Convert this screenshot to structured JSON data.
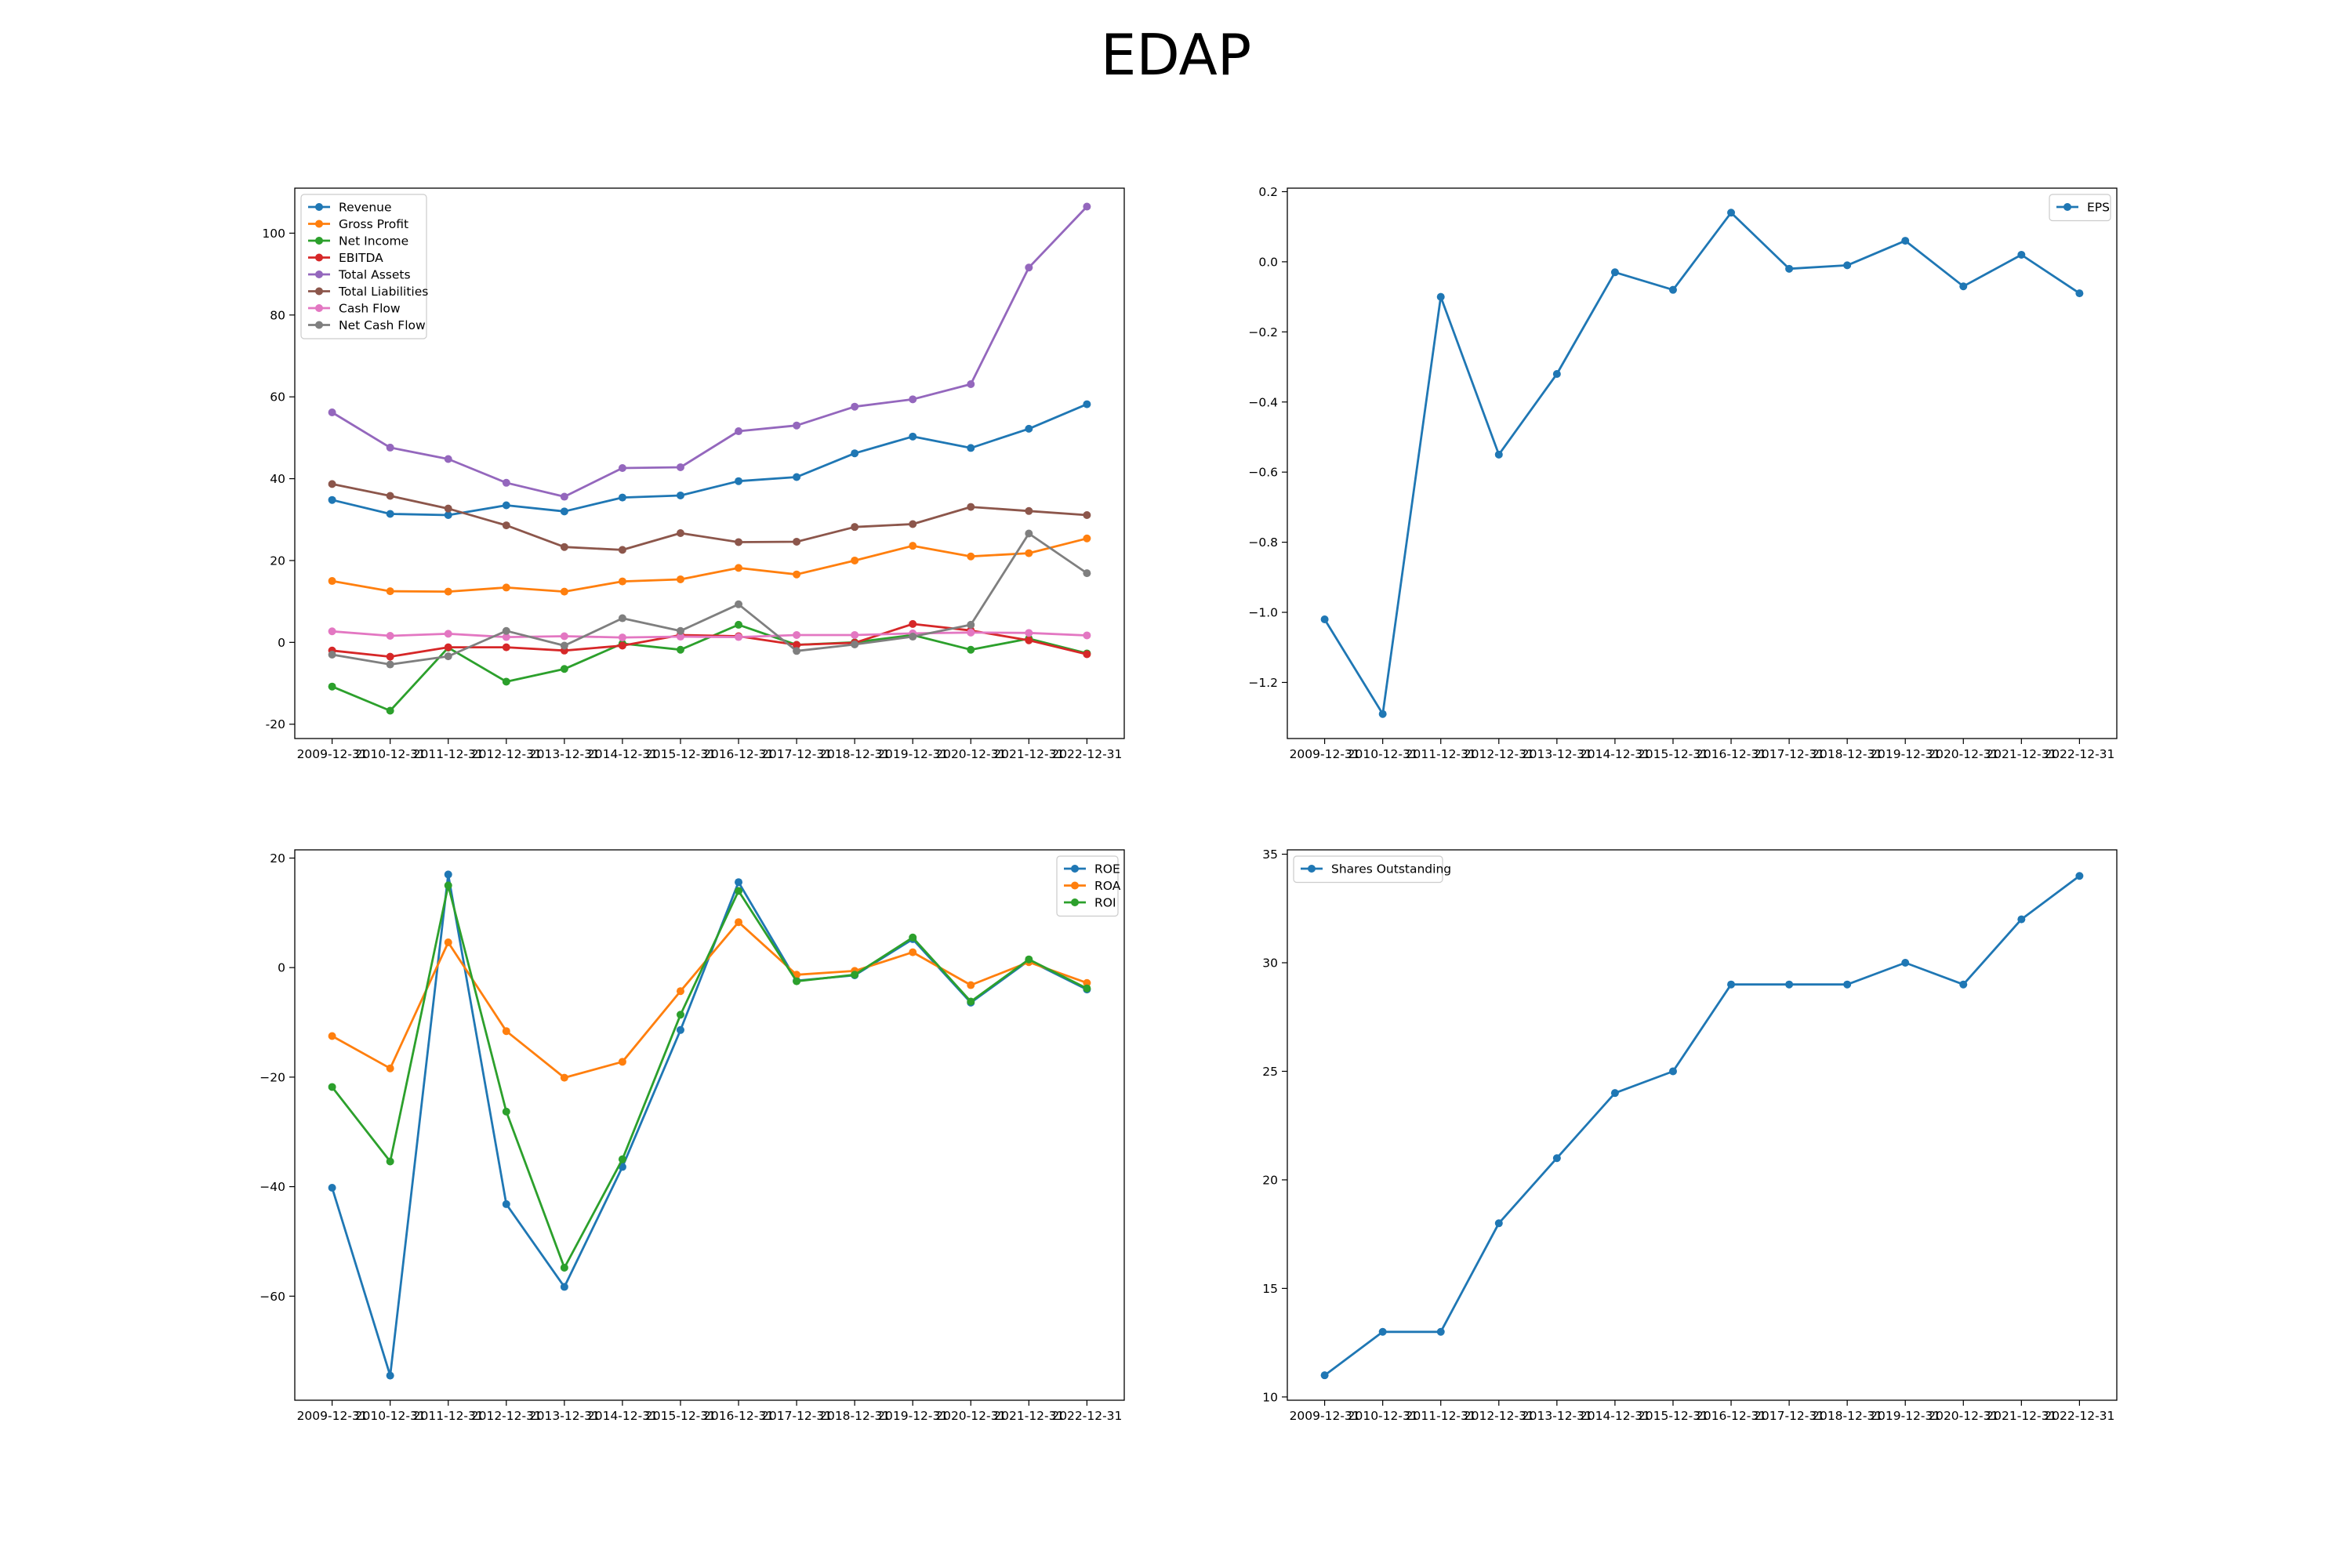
{
  "title": "EDAP",
  "chart_data": [
    {
      "type": "line",
      "title": "",
      "xlabel": "",
      "ylabel": "",
      "categories": [
        "2009-12-31",
        "2010-12-31",
        "2011-12-31",
        "2012-12-31",
        "2013-12-31",
        "2014-12-31",
        "2015-12-31",
        "2016-12-31",
        "2017-12-31",
        "2018-12-31",
        "2019-12-31",
        "2020-12-31",
        "2021-12-31",
        "2022-12-31"
      ],
      "ylim": [
        -23.5,
        111
      ],
      "yticks": [
        -20,
        0,
        20,
        40,
        60,
        80,
        100
      ],
      "grid": false,
      "legend": "upper left",
      "series": [
        {
          "name": "Revenue",
          "color": "#1f77b4",
          "values": [
            34.8,
            31.4,
            31.1,
            33.5,
            32.0,
            35.4,
            35.9,
            39.4,
            40.4,
            46.2,
            50.3,
            47.5,
            52.2,
            58.2
          ]
        },
        {
          "name": "Gross Profit",
          "color": "#ff7f0e",
          "values": [
            15.0,
            12.5,
            12.4,
            13.4,
            12.4,
            14.9,
            15.4,
            18.2,
            16.6,
            20.0,
            23.6,
            21.0,
            21.8,
            25.4
          ]
        },
        {
          "name": "Net Income",
          "color": "#2ca02c",
          "values": [
            -10.8,
            -16.7,
            -1.3,
            -9.6,
            -6.5,
            -0.3,
            -1.8,
            4.3,
            -0.6,
            0.0,
            1.8,
            -1.8,
            0.9,
            -2.7
          ]
        },
        {
          "name": "EBITDA",
          "color": "#d62728",
          "values": [
            -2.0,
            -3.5,
            -1.2,
            -1.2,
            -2.0,
            -0.8,
            1.8,
            1.5,
            -0.6,
            -0.1,
            4.5,
            2.9,
            0.5,
            -2.9
          ]
        },
        {
          "name": "Total Assets",
          "color": "#9467bd",
          "values": [
            56.2,
            47.6,
            44.8,
            39.0,
            35.6,
            42.6,
            42.8,
            51.6,
            53.0,
            57.6,
            59.4,
            63.1,
            91.6,
            106.5
          ]
        },
        {
          "name": "Total Liabilities",
          "color": "#8c564b",
          "values": [
            38.7,
            35.8,
            32.7,
            28.6,
            23.3,
            22.6,
            26.7,
            24.5,
            24.6,
            28.2,
            28.9,
            33.1,
            32.1,
            31.1
          ]
        },
        {
          "name": "Cash Flow",
          "color": "#e377c2",
          "values": [
            2.7,
            1.6,
            2.1,
            1.3,
            1.5,
            1.2,
            1.4,
            1.3,
            1.8,
            1.8,
            2.2,
            2.4,
            2.3,
            1.7
          ]
        },
        {
          "name": "Net Cash Flow",
          "color": "#7f7f7f",
          "values": [
            -3.0,
            -5.4,
            -3.4,
            2.8,
            -0.8,
            5.9,
            2.8,
            9.3,
            -2.1,
            -0.5,
            1.4,
            4.3,
            26.6,
            16.9
          ]
        }
      ]
    },
    {
      "type": "line",
      "title": "",
      "xlabel": "",
      "ylabel": "",
      "categories": [
        "2009-12-31",
        "2010-12-31",
        "2011-12-31",
        "2012-12-31",
        "2013-12-31",
        "2014-12-31",
        "2015-12-31",
        "2016-12-31",
        "2017-12-31",
        "2018-12-31",
        "2019-12-31",
        "2020-12-31",
        "2021-12-31",
        "2022-12-31"
      ],
      "ylim": [
        -1.36,
        0.21
      ],
      "yticks": [
        -1.2,
        -1.0,
        -0.8,
        -0.6,
        -0.4,
        -0.2,
        0.0,
        0.2
      ],
      "ytick_labels": [
        "−1.2",
        "−1.0",
        "−0.8",
        "−0.6",
        "−0.4",
        "−0.2",
        "0.0",
        "0.2"
      ],
      "grid": false,
      "legend": "upper right",
      "series": [
        {
          "name": "EPS",
          "color": "#1f77b4",
          "values": [
            -1.02,
            -1.29,
            -0.1,
            -0.55,
            -0.32,
            -0.03,
            -0.08,
            0.14,
            -0.02,
            -0.01,
            0.06,
            -0.07,
            0.02,
            -0.09
          ]
        }
      ]
    },
    {
      "type": "line",
      "title": "",
      "xlabel": "",
      "ylabel": "",
      "categories": [
        "2009-12-31",
        "2010-12-31",
        "2011-12-31",
        "2012-12-31",
        "2013-12-31",
        "2014-12-31",
        "2015-12-31",
        "2016-12-31",
        "2017-12-31",
        "2018-12-31",
        "2019-12-31",
        "2020-12-31",
        "2021-12-31",
        "2022-12-31"
      ],
      "ylim": [
        -79,
        21.5
      ],
      "yticks": [
        -60,
        -40,
        -20,
        0,
        20
      ],
      "ytick_labels": [
        "−60",
        "−40",
        "−20",
        "0",
        "20"
      ],
      "grid": false,
      "legend": "upper right",
      "series": [
        {
          "name": "ROE",
          "color": "#1f77b4",
          "values": [
            -40.2,
            -74.5,
            17.0,
            -43.2,
            -58.3,
            -36.4,
            -11.4,
            15.6,
            -2.4,
            -1.4,
            5.2,
            -6.4,
            1.3,
            -4.0
          ]
        },
        {
          "name": "ROA",
          "color": "#ff7f0e",
          "values": [
            -12.5,
            -18.4,
            4.6,
            -11.6,
            -20.1,
            -17.2,
            -4.3,
            8.3,
            -1.3,
            -0.6,
            2.8,
            -3.2,
            1.0,
            -2.8
          ]
        },
        {
          "name": "ROI",
          "color": "#2ca02c",
          "values": [
            -21.8,
            -35.4,
            15.0,
            -26.3,
            -54.8,
            -35.0,
            -8.6,
            14.0,
            -2.5,
            -1.3,
            5.5,
            -6.2,
            1.5,
            -3.8
          ]
        }
      ]
    },
    {
      "type": "line",
      "title": "",
      "xlabel": "",
      "ylabel": "",
      "categories": [
        "2009-12-31",
        "2010-12-31",
        "2011-12-31",
        "2012-12-31",
        "2013-12-31",
        "2014-12-31",
        "2015-12-31",
        "2016-12-31",
        "2017-12-31",
        "2018-12-31",
        "2019-12-31",
        "2020-12-31",
        "2021-12-31",
        "2022-12-31"
      ],
      "ylim": [
        9.85,
        35.2
      ],
      "yticks": [
        10,
        15,
        20,
        25,
        30,
        35
      ],
      "grid": false,
      "legend": "upper left",
      "series": [
        {
          "name": "Shares Outstanding",
          "color": "#1f77b4",
          "values": [
            11,
            13,
            13,
            18,
            21,
            24,
            25,
            29,
            29,
            29,
            30,
            29,
            32,
            34
          ]
        }
      ]
    }
  ]
}
